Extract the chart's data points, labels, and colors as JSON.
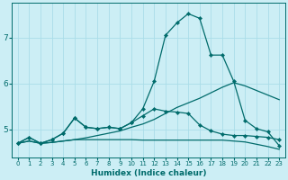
{
  "xlabel": "Humidex (Indice chaleur)",
  "background_color": "#cceef5",
  "grid_color": "#aadde8",
  "line_color": "#006b6b",
  "xlim": [
    -0.5,
    23.5
  ],
  "ylim": [
    4.4,
    7.75
  ],
  "yticks": [
    5,
    6,
    7
  ],
  "xticks": [
    0,
    1,
    2,
    3,
    4,
    5,
    6,
    7,
    8,
    9,
    10,
    11,
    12,
    13,
    14,
    15,
    16,
    17,
    18,
    19,
    20,
    21,
    22,
    23
  ],
  "series": [
    {
      "x": [
        0,
        1,
        2,
        3,
        4,
        5,
        6,
        7,
        8,
        9,
        10,
        11,
        12,
        13,
        14,
        15,
        16,
        17,
        18,
        19,
        20,
        21,
        22,
        23
      ],
      "y": [
        4.7,
        4.75,
        4.7,
        4.72,
        4.75,
        4.78,
        4.78,
        4.78,
        4.78,
        4.78,
        4.78,
        4.77,
        4.77,
        4.77,
        4.77,
        4.77,
        4.77,
        4.77,
        4.77,
        4.75,
        4.73,
        4.68,
        4.63,
        4.57
      ],
      "marker": null,
      "lw": 0.9
    },
    {
      "x": [
        0,
        1,
        2,
        3,
        4,
        5,
        6,
        7,
        8,
        9,
        10,
        11,
        12,
        13,
        14,
        15,
        16,
        17,
        18,
        19,
        20,
        21,
        22,
        23
      ],
      "y": [
        4.7,
        4.75,
        4.7,
        4.72,
        4.75,
        4.78,
        4.82,
        4.87,
        4.92,
        4.97,
        5.05,
        5.12,
        5.22,
        5.35,
        5.48,
        5.58,
        5.68,
        5.8,
        5.92,
        6.02,
        5.95,
        5.85,
        5.75,
        5.65
      ],
      "marker": null,
      "lw": 0.9
    },
    {
      "x": [
        0,
        1,
        2,
        3,
        4,
        5,
        6,
        7,
        8,
        9,
        10,
        11,
        12,
        13,
        14,
        15,
        16,
        17,
        18,
        19,
        20,
        21,
        22,
        23
      ],
      "y": [
        4.7,
        4.83,
        4.7,
        4.78,
        4.92,
        5.25,
        5.05,
        5.02,
        5.05,
        5.02,
        5.15,
        5.3,
        5.45,
        5.4,
        5.38,
        5.35,
        5.1,
        4.97,
        4.9,
        4.87,
        4.87,
        4.85,
        4.83,
        4.78
      ],
      "marker": "D",
      "lw": 0.9
    },
    {
      "x": [
        0,
        1,
        2,
        3,
        4,
        5,
        6,
        7,
        8,
        9,
        10,
        11,
        12,
        13,
        14,
        15,
        16,
        17,
        18,
        19,
        20,
        21,
        22,
        23
      ],
      "y": [
        4.7,
        4.83,
        4.7,
        4.78,
        4.92,
        5.25,
        5.05,
        5.02,
        5.05,
        5.02,
        5.15,
        5.45,
        6.05,
        7.05,
        7.32,
        7.52,
        7.42,
        6.62,
        6.62,
        6.05,
        5.2,
        5.02,
        4.95,
        4.65
      ],
      "marker": "D",
      "lw": 0.9
    }
  ]
}
